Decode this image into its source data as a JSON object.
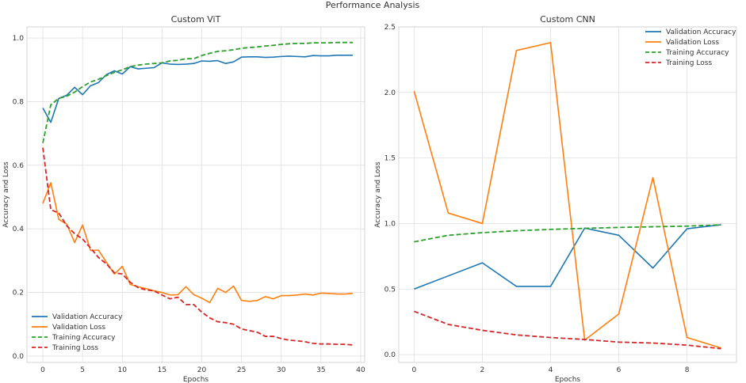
{
  "suptitle": "Performance Analysis",
  "colors": {
    "val_acc": "#1f77b4",
    "val_loss": "#ff7f0e",
    "train_acc": "#2ca02c",
    "train_loss": "#d62728",
    "grid": "#e0e0e0",
    "axes_bg": "#ffffff",
    "spine": "#cccccc"
  },
  "chart_data": [
    {
      "type": "line",
      "title": "Custom ViT",
      "xlabel": "Epochs",
      "ylabel": "Accuracy and Loss",
      "xlim": [
        -2,
        40.5
      ],
      "ylim": [
        -0.02,
        1.035
      ],
      "xticks": [
        0,
        5,
        10,
        15,
        20,
        25,
        30,
        35,
        40
      ],
      "yticks": [
        0.0,
        0.2,
        0.4,
        0.6,
        0.8,
        1.0
      ],
      "ytick_labels": [
        "0.0",
        "0.2",
        "0.4",
        "0.6",
        "0.8",
        "1.0"
      ],
      "grid": true,
      "legend_position": "lower-left",
      "series": [
        {
          "name": "Validation Accuracy",
          "color_key": "val_acc",
          "dash": false,
          "x": [
            0,
            1,
            2,
            3,
            4,
            5,
            6,
            7,
            8,
            9,
            10,
            11,
            12,
            13,
            14,
            15,
            16,
            17,
            18,
            19,
            20,
            21,
            22,
            23,
            24,
            25,
            26,
            27,
            28,
            29,
            30,
            31,
            32,
            33,
            34,
            35,
            36,
            37,
            38,
            39
          ],
          "values": [
            0.78,
            0.735,
            0.81,
            0.82,
            0.845,
            0.822,
            0.85,
            0.86,
            0.885,
            0.897,
            0.887,
            0.91,
            0.903,
            0.905,
            0.907,
            0.922,
            0.918,
            0.917,
            0.918,
            0.92,
            0.928,
            0.927,
            0.929,
            0.92,
            0.925,
            0.94,
            0.941,
            0.941,
            0.939,
            0.94,
            0.942,
            0.943,
            0.942,
            0.941,
            0.945,
            0.944,
            0.944,
            0.946,
            0.946,
            0.946
          ]
        },
        {
          "name": "Validation Loss",
          "color_key": "val_loss",
          "dash": false,
          "x": [
            0,
            1,
            2,
            3,
            4,
            5,
            6,
            7,
            8,
            9,
            10,
            11,
            12,
            13,
            14,
            15,
            16,
            17,
            18,
            19,
            20,
            21,
            22,
            23,
            24,
            25,
            26,
            27,
            28,
            29,
            30,
            31,
            32,
            33,
            34,
            35,
            36,
            37,
            38,
            39
          ],
          "values": [
            0.48,
            0.545,
            0.43,
            0.415,
            0.357,
            0.412,
            0.332,
            0.333,
            0.295,
            0.258,
            0.282,
            0.225,
            0.218,
            0.212,
            0.205,
            0.2,
            0.192,
            0.193,
            0.218,
            0.193,
            0.182,
            0.168,
            0.213,
            0.2,
            0.22,
            0.175,
            0.172,
            0.175,
            0.187,
            0.18,
            0.19,
            0.19,
            0.192,
            0.195,
            0.192,
            0.198,
            0.197,
            0.195,
            0.195,
            0.197
          ]
        },
        {
          "name": "Training Accuracy",
          "color_key": "train_acc",
          "dash": true,
          "x": [
            0,
            1,
            2,
            3,
            4,
            5,
            6,
            7,
            8,
            9,
            10,
            11,
            12,
            13,
            14,
            15,
            16,
            17,
            18,
            19,
            20,
            21,
            22,
            23,
            24,
            25,
            26,
            27,
            28,
            29,
            30,
            31,
            32,
            33,
            34,
            35,
            36,
            37,
            38,
            39
          ],
          "values": [
            0.67,
            0.79,
            0.81,
            0.817,
            0.83,
            0.847,
            0.862,
            0.87,
            0.882,
            0.892,
            0.9,
            0.91,
            0.915,
            0.918,
            0.92,
            0.922,
            0.928,
            0.93,
            0.935,
            0.935,
            0.945,
            0.952,
            0.958,
            0.96,
            0.963,
            0.968,
            0.97,
            0.972,
            0.975,
            0.977,
            0.98,
            0.982,
            0.983,
            0.983,
            0.985,
            0.985,
            0.985,
            0.986,
            0.986,
            0.986
          ]
        },
        {
          "name": "Training Loss",
          "color_key": "train_loss",
          "dash": true,
          "x": [
            0,
            1,
            2,
            3,
            4,
            5,
            6,
            7,
            8,
            9,
            10,
            11,
            12,
            13,
            14,
            15,
            16,
            17,
            18,
            19,
            20,
            21,
            22,
            23,
            24,
            25,
            26,
            27,
            28,
            29,
            30,
            31,
            32,
            33,
            34,
            35,
            36,
            37,
            38,
            39
          ],
          "values": [
            0.655,
            0.46,
            0.45,
            0.41,
            0.385,
            0.368,
            0.34,
            0.31,
            0.29,
            0.262,
            0.258,
            0.232,
            0.215,
            0.208,
            0.205,
            0.192,
            0.18,
            0.185,
            0.162,
            0.162,
            0.138,
            0.12,
            0.108,
            0.105,
            0.1,
            0.085,
            0.08,
            0.075,
            0.062,
            0.062,
            0.055,
            0.05,
            0.048,
            0.045,
            0.04,
            0.038,
            0.038,
            0.037,
            0.037,
            0.035
          ]
        }
      ]
    },
    {
      "type": "line",
      "title": "Custom CNN",
      "xlabel": "Epochs",
      "ylabel": "Accuracy and Loss",
      "xlim": [
        -0.45,
        9.45
      ],
      "ylim": [
        -0.06,
        2.5
      ],
      "xticks": [
        0,
        2,
        4,
        6,
        8
      ],
      "yticks": [
        0.0,
        0.5,
        1.0,
        1.5,
        2.0,
        2.5
      ],
      "ytick_labels": [
        "0.0",
        "0.5",
        "1.0",
        "1.5",
        "2.0",
        "2.5"
      ],
      "grid": true,
      "legend_position": "upper-right",
      "series": [
        {
          "name": "Validation Accuracy",
          "color_key": "val_acc",
          "dash": false,
          "x": [
            0,
            1,
            2,
            3,
            4,
            5,
            6,
            7,
            8,
            9
          ],
          "values": [
            0.5,
            0.6,
            0.7,
            0.52,
            0.52,
            0.965,
            0.91,
            0.66,
            0.96,
            0.99
          ]
        },
        {
          "name": "Validation Loss",
          "color_key": "val_loss",
          "dash": false,
          "x": [
            0,
            1,
            2,
            3,
            4,
            5,
            6,
            7,
            8,
            9
          ],
          "values": [
            2.01,
            1.08,
            1.0,
            2.32,
            2.38,
            0.11,
            0.31,
            1.35,
            0.13,
            0.05
          ]
        },
        {
          "name": "Training Accuracy",
          "color_key": "train_acc",
          "dash": true,
          "x": [
            0,
            1,
            2,
            3,
            4,
            5,
            6,
            7,
            8,
            9
          ],
          "values": [
            0.86,
            0.91,
            0.93,
            0.945,
            0.955,
            0.963,
            0.97,
            0.975,
            0.98,
            0.99
          ]
        },
        {
          "name": "Training Loss",
          "color_key": "train_loss",
          "dash": true,
          "x": [
            0,
            1,
            2,
            3,
            4,
            5,
            6,
            7,
            8,
            9
          ],
          "values": [
            0.33,
            0.23,
            0.185,
            0.15,
            0.13,
            0.115,
            0.095,
            0.088,
            0.072,
            0.045
          ]
        }
      ]
    }
  ]
}
